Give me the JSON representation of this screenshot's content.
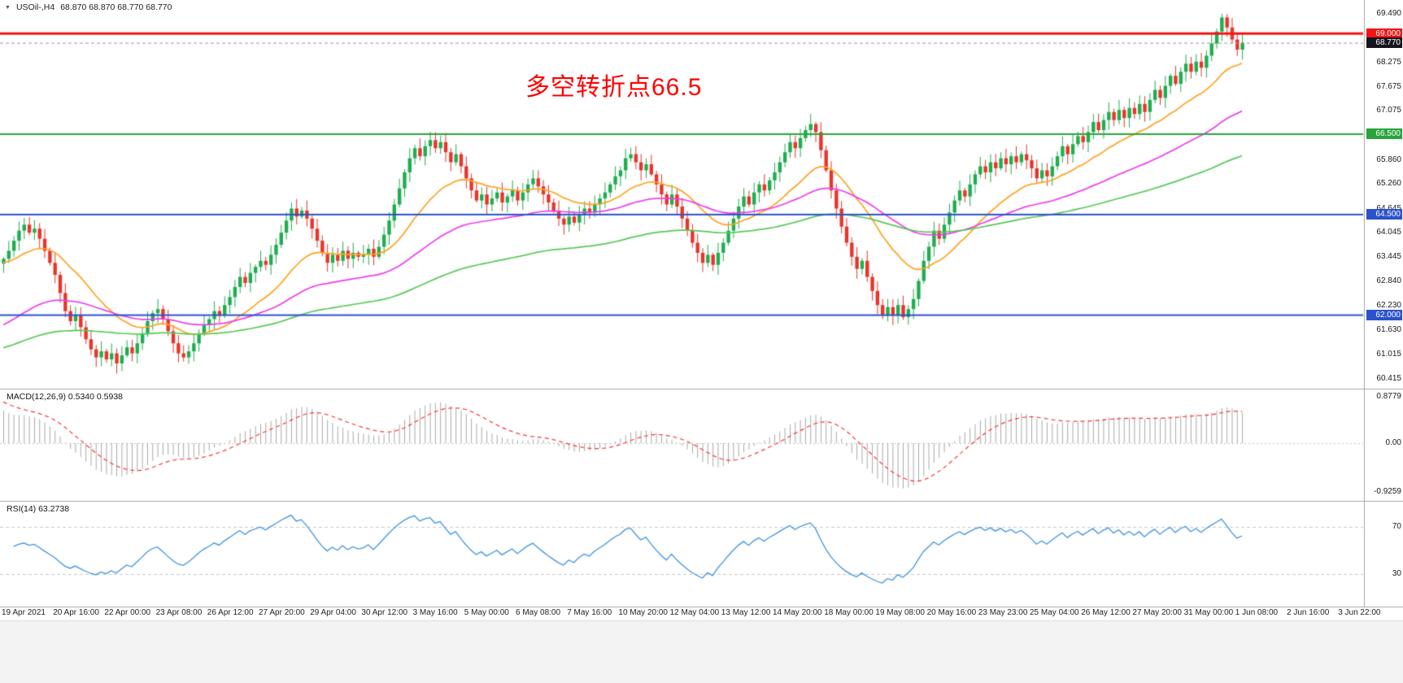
{
  "header": {
    "dropdown_icon": "▼",
    "symbol": "USOil-,H4",
    "ohlc": "68.870 68.870 68.770 68.770"
  },
  "main": {
    "annotation": {
      "text": "多空转折点66.5",
      "color": "#ff0000"
    },
    "up_color": "#1fae4f",
    "down_color": "#e8352b",
    "hlines": [
      {
        "value": 69.0,
        "label": "69.000",
        "color": "#f21515",
        "badge_bg": "#f21515",
        "thickness": 3
      },
      {
        "value": 66.5,
        "label": "66.500",
        "color": "#28a43c",
        "badge_bg": "#28a43c",
        "thickness": 2
      },
      {
        "value": 64.5,
        "label": "64.500",
        "color": "#2b52cc",
        "badge_bg": "#2b52cc",
        "thickness": 2
      },
      {
        "value": 62.0,
        "label": "62.000",
        "color": "#2b52cc",
        "badge_bg": "#2b52cc",
        "thickness": 2
      }
    ],
    "current_price": {
      "value": 68.77,
      "label": "68.770",
      "badge_bg": "#15151f",
      "line_color": "#999999"
    },
    "ma_lines": [
      {
        "name": "ma-fast",
        "period": 20,
        "color": "#ffa21f",
        "seed": 63.3
      },
      {
        "name": "ma-mid",
        "period": 55,
        "color": "#ee3cee",
        "seed": 61.7
      },
      {
        "name": "ma-slow",
        "period": 120,
        "color": "#57c957",
        "seed": 61.15
      }
    ]
  },
  "macd": {
    "label": "MACD(12,26,9) 0.5340 0.5938",
    "fast": 12,
    "slow": 26,
    "signal": 9,
    "main_value": 0.534,
    "signal_value": 0.5938,
    "ticks": [
      {
        "value": 0.8779,
        "label": "0.8779"
      },
      {
        "value": 0,
        "label": "0.00"
      },
      {
        "value": -0.9259,
        "label": "-0.9259"
      }
    ],
    "hist_color": "#a9a9a9",
    "signal_color": "#ff3333"
  },
  "rsi": {
    "label": "RSI(14) 63.2738",
    "period": 14,
    "value": 63.2738,
    "levels": [
      {
        "value": 70,
        "label": "70"
      },
      {
        "value": 30,
        "label": "30"
      }
    ],
    "line_color": "#3f94e0",
    "level_color": "#c9c9c9"
  },
  "chart_data": {
    "type": "candlestick",
    "symbol": "USOil-",
    "timeframe": "H4",
    "last_ohlc": {
      "open": 68.87,
      "high": 68.87,
      "low": 68.77,
      "close": 68.77
    },
    "ylim": [
      60.415,
      69.49
    ],
    "y_ticks": [
      69.49,
      68.275,
      67.675,
      67.075,
      65.86,
      65.26,
      64.645,
      64.045,
      63.445,
      62.84,
      62.23,
      61.63,
      61.015,
      60.415
    ],
    "horizontal_levels": [
      69.0,
      66.5,
      64.5,
      62.0
    ],
    "x_tick_labels": [
      "19 Apr 2021",
      "20 Apr 16:00",
      "22 Apr 00:00",
      "23 Apr 08:00",
      "26 Apr 12:00",
      "27 Apr 20:00",
      "29 Apr 04:00",
      "30 Apr 12:00",
      "3 May 16:00",
      "5 May 00:00",
      "6 May 08:00",
      "7 May 16:00",
      "10 May 20:00",
      "12 May 04:00",
      "13 May 12:00",
      "14 May 20:00",
      "18 May 00:00",
      "19 May 08:00",
      "20 May 16:00",
      "23 May 23:00",
      "25 May 04:00",
      "26 May 12:00",
      "27 May 20:00",
      "31 May 00:00",
      "1 Jun 08:00",
      "2 Jun 16:00",
      "3 Jun 22:00"
    ],
    "closes": [
      63.4,
      63.6,
      63.85,
      64.1,
      64.25,
      64.05,
      64.15,
      63.9,
      63.6,
      63.3,
      63.0,
      62.55,
      62.1,
      61.85,
      62.0,
      61.7,
      61.4,
      61.15,
      60.95,
      61.1,
      60.9,
      61.05,
      60.8,
      61.0,
      61.2,
      61.05,
      61.3,
      61.55,
      61.85,
      62.05,
      62.15,
      61.9,
      61.6,
      61.3,
      61.05,
      60.95,
      61.1,
      61.3,
      61.55,
      61.75,
      61.9,
      62.1,
      62.0,
      62.25,
      62.45,
      62.7,
      62.95,
      62.8,
      63.05,
      63.2,
      63.35,
      63.25,
      63.5,
      63.75,
      64.05,
      64.35,
      64.65,
      64.45,
      64.6,
      64.4,
      64.15,
      63.85,
      63.55,
      63.3,
      63.5,
      63.35,
      63.6,
      63.4,
      63.55,
      63.45,
      63.5,
      63.65,
      63.45,
      63.7,
      64.0,
      64.35,
      64.75,
      65.15,
      65.55,
      65.9,
      66.15,
      65.95,
      66.2,
      66.35,
      66.15,
      66.3,
      66.05,
      65.8,
      66.0,
      65.7,
      65.4,
      65.1,
      64.85,
      65.0,
      64.75,
      64.9,
      65.05,
      64.8,
      64.95,
      65.1,
      64.85,
      65.05,
      65.25,
      65.4,
      65.2,
      65.0,
      64.8,
      64.6,
      64.4,
      64.25,
      64.45,
      64.3,
      64.5,
      64.65,
      64.55,
      64.75,
      64.9,
      65.05,
      65.25,
      65.45,
      65.6,
      65.9,
      66.0,
      65.8,
      65.6,
      65.75,
      65.5,
      65.25,
      65.0,
      64.75,
      65.0,
      64.7,
      64.4,
      64.1,
      63.8,
      63.55,
      63.3,
      63.5,
      63.25,
      63.55,
      63.8,
      64.1,
      64.4,
      64.7,
      64.95,
      64.75,
      65.05,
      65.25,
      65.1,
      65.35,
      65.55,
      65.8,
      66.05,
      66.3,
      66.15,
      66.4,
      66.6,
      66.75,
      66.55,
      66.1,
      65.6,
      65.1,
      64.65,
      64.2,
      63.8,
      63.45,
      63.15,
      63.35,
      62.95,
      62.6,
      62.25,
      62.0,
      62.2,
      62.0,
      62.25,
      61.95,
      62.15,
      62.4,
      62.85,
      63.35,
      63.7,
      64.1,
      63.9,
      64.25,
      64.55,
      64.85,
      65.1,
      64.95,
      65.25,
      65.5,
      65.7,
      65.55,
      65.8,
      65.65,
      65.9,
      65.75,
      65.95,
      65.8,
      66.0,
      65.85,
      65.65,
      65.4,
      65.6,
      65.45,
      65.7,
      65.95,
      66.2,
      66.0,
      66.25,
      66.45,
      66.3,
      66.55,
      66.8,
      66.6,
      66.85,
      67.05,
      66.85,
      67.1,
      66.9,
      67.15,
      67.0,
      67.25,
      67.05,
      67.35,
      67.6,
      67.4,
      67.7,
      67.95,
      67.75,
      68.05,
      68.25,
      68.05,
      68.3,
      68.15,
      68.45,
      68.75,
      69.05,
      69.4,
      69.15,
      68.85,
      68.6,
      68.77
    ],
    "indicators": {
      "macd": {
        "params": [
          12,
          26,
          9
        ],
        "last_main": 0.534,
        "last_signal": 0.5938,
        "axis_range": [
          -0.9259,
          0.8779
        ]
      },
      "rsi": {
        "period": 14,
        "last": 63.2738,
        "levels": [
          30,
          70
        ]
      }
    }
  }
}
